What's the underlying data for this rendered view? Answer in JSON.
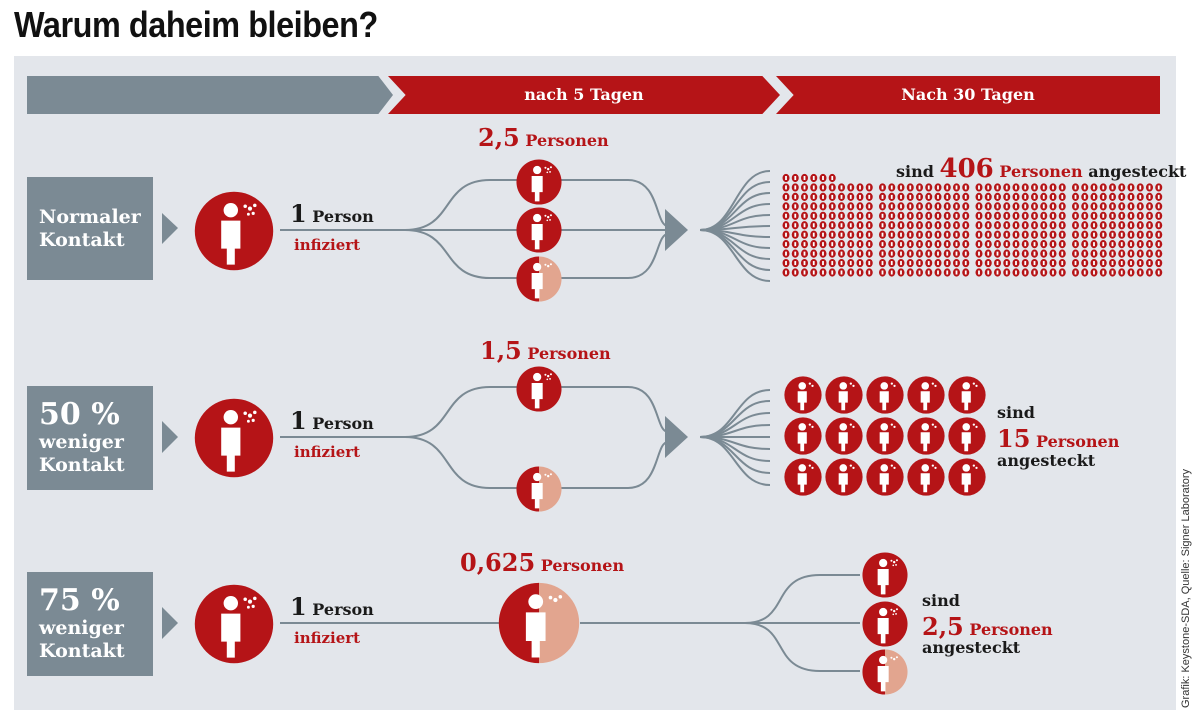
{
  "title": "Warum daheim bleiben?",
  "header": {
    "col1": "",
    "col2": "nach 5 Tagen",
    "col3": "Nach 30 Tagen"
  },
  "rows": [
    {
      "label": [
        "Normaler",
        "Kontakt"
      ],
      "infected_number": "1",
      "infected_unit": "Person",
      "infected_word": "infiziert",
      "day5_number": "2,5",
      "day5_unit": "Personen",
      "day30_prefix": "sind",
      "day30_number": "406",
      "day30_unit": "Personen",
      "day30_suffix": "angesteckt"
    },
    {
      "label": [
        "50 %",
        "weniger",
        "Kontakt"
      ],
      "infected_number": "1",
      "infected_unit": "Person",
      "infected_word": "infiziert",
      "day5_number": "1,5",
      "day5_unit": "Personen",
      "day30_prefix": "sind",
      "day30_number": "15",
      "day30_unit": "Personen",
      "day30_suffix": "angesteckt"
    },
    {
      "label": [
        "75 %",
        "weniger",
        "Kontakt"
      ],
      "infected_number": "1",
      "infected_unit": "Person",
      "infected_word": "infiziert",
      "day5_number": "0,625",
      "day5_unit": "Personen",
      "day30_prefix": "sind",
      "day30_number": "2,5",
      "day30_unit": "Personen",
      "day30_suffix": "angesteckt"
    }
  ],
  "credit": "Grafik: Keystone-SDA, Quelle: Signer Laboratory",
  "colors": {
    "red": "#b51417",
    "grey": "#7b8a94",
    "light_red": "#e2a58f",
    "panel": "#e3e6eb"
  },
  "icons": {
    "person": "person-with-droplets-icon",
    "dot": "person-dot-icon"
  }
}
